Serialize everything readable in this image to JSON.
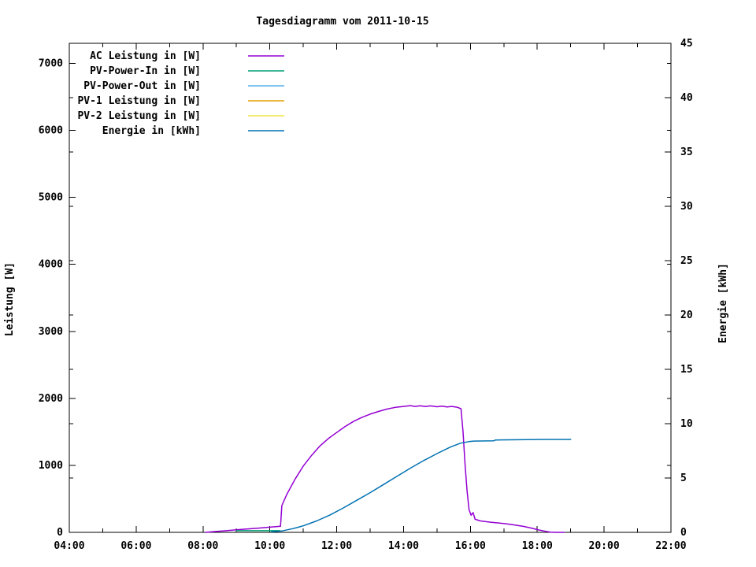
{
  "chart_data": {
    "type": "line",
    "title": "Tagesdiagramm vom 2011-10-15",
    "xlabel": "",
    "ylabel": "Leistung [W]",
    "y2label": "Energie [kWh]",
    "xlim": [
      4,
      22
    ],
    "ylim": [
      0,
      7300
    ],
    "y2lim": [
      0,
      45
    ],
    "background": "#ffffff",
    "axis_color": "#000000",
    "grid": false,
    "legend_position": "top-left-inside",
    "x_major_ticks": [
      4,
      6,
      8,
      10,
      12,
      14,
      16,
      18,
      20,
      22
    ],
    "x_major_labels": [
      "04:00",
      "06:00",
      "08:00",
      "10:00",
      "12:00",
      "14:00",
      "16:00",
      "18:00",
      "20:00",
      "22:00"
    ],
    "x_minor_ticks": [
      5,
      7,
      9,
      11,
      13,
      15,
      17,
      19,
      21
    ],
    "y_ticks": [
      0,
      1000,
      2000,
      3000,
      4000,
      5000,
      6000,
      7000
    ],
    "y_tick_labels": [
      "0",
      "1000",
      "2000",
      "3000",
      "4000",
      "5000",
      "6000",
      "7000"
    ],
    "y2_ticks": [
      0,
      5,
      10,
      15,
      20,
      25,
      30,
      35,
      40,
      45
    ],
    "y2_tick_labels": [
      "0",
      "5",
      "10",
      "15",
      "20",
      "25",
      "30",
      "35",
      "40",
      "45"
    ],
    "series": [
      {
        "name": "AC Leistung in [W]",
        "color": "#9400d3",
        "axis": "y",
        "points": [
          [
            8.08,
            0
          ],
          [
            8.35,
            12
          ],
          [
            8.7,
            25
          ],
          [
            9.0,
            38
          ],
          [
            9.35,
            52
          ],
          [
            9.7,
            65
          ],
          [
            10.0,
            78
          ],
          [
            10.32,
            90
          ],
          [
            10.36,
            400
          ],
          [
            10.5,
            560
          ],
          [
            10.75,
            790
          ],
          [
            11.0,
            990
          ],
          [
            11.25,
            1150
          ],
          [
            11.5,
            1290
          ],
          [
            11.75,
            1400
          ],
          [
            12.0,
            1490
          ],
          [
            12.25,
            1580
          ],
          [
            12.5,
            1655
          ],
          [
            12.75,
            1715
          ],
          [
            13.0,
            1765
          ],
          [
            13.25,
            1805
          ],
          [
            13.5,
            1840
          ],
          [
            13.75,
            1865
          ],
          [
            14.0,
            1880
          ],
          [
            14.2,
            1892
          ],
          [
            14.35,
            1880
          ],
          [
            14.5,
            1890
          ],
          [
            14.65,
            1878
          ],
          [
            14.8,
            1888
          ],
          [
            15.0,
            1875
          ],
          [
            15.15,
            1884
          ],
          [
            15.3,
            1872
          ],
          [
            15.45,
            1880
          ],
          [
            15.6,
            1868
          ],
          [
            15.72,
            1845
          ],
          [
            15.78,
            1500
          ],
          [
            15.84,
            1020
          ],
          [
            15.9,
            620
          ],
          [
            15.96,
            340
          ],
          [
            16.02,
            255
          ],
          [
            16.08,
            295
          ],
          [
            16.14,
            195
          ],
          [
            16.3,
            170
          ],
          [
            16.6,
            152
          ],
          [
            17.0,
            132
          ],
          [
            17.3,
            112
          ],
          [
            17.6,
            88
          ],
          [
            17.85,
            60
          ],
          [
            18.05,
            35
          ],
          [
            18.25,
            15
          ],
          [
            18.4,
            4
          ],
          [
            18.55,
            0
          ],
          [
            18.8,
            0
          ]
        ]
      },
      {
        "name": "PV-Power-In in [W]",
        "color": "#009e73",
        "axis": "y",
        "points": [
          [
            9.0,
            25
          ],
          [
            10.3,
            25
          ]
        ]
      },
      {
        "name": "PV-Power-Out in [W]",
        "color": "#56b4e9",
        "axis": "y",
        "points": []
      },
      {
        "name": "PV-1 Leistung in [W]",
        "color": "#e69f00",
        "axis": "y",
        "points": []
      },
      {
        "name": "PV-2 Leistung in [W]",
        "color": "#f0e442",
        "axis": "y",
        "points": []
      },
      {
        "name": "Energie in [kWh]",
        "color": "#0072b2",
        "axis": "y2",
        "points": [
          [
            10.05,
            0.05
          ],
          [
            10.35,
            0.12
          ],
          [
            10.7,
            0.35
          ],
          [
            11.0,
            0.6
          ],
          [
            11.4,
            1.05
          ],
          [
            11.8,
            1.6
          ],
          [
            12.2,
            2.25
          ],
          [
            12.6,
            2.95
          ],
          [
            13.0,
            3.65
          ],
          [
            13.4,
            4.4
          ],
          [
            13.8,
            5.15
          ],
          [
            14.2,
            5.9
          ],
          [
            14.6,
            6.6
          ],
          [
            15.0,
            7.25
          ],
          [
            15.4,
            7.85
          ],
          [
            15.7,
            8.2
          ],
          [
            15.95,
            8.35
          ],
          [
            16.1,
            8.4
          ],
          [
            16.7,
            8.42
          ],
          [
            16.75,
            8.5
          ],
          [
            17.4,
            8.52
          ],
          [
            18.2,
            8.55
          ],
          [
            19.0,
            8.55
          ]
        ]
      }
    ]
  }
}
